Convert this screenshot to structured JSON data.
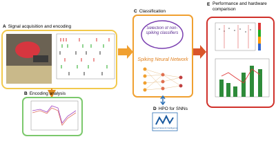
{
  "panels": [
    {
      "letter": "A",
      "title": "Signal acquisition and encoding"
    },
    {
      "letter": "B",
      "title": "Encoding analysis"
    },
    {
      "letter": "C",
      "title": "Classification",
      "box_texts": [
        "Selection of non-spiking classifiers",
        "Spiking Neural Network"
      ]
    },
    {
      "letter": "D",
      "title": "HPO for SNNs",
      "logo_text": "Neural Network Intelligence"
    },
    {
      "letter": "E",
      "title": "Performance and hardware comparison"
    }
  ]
}
